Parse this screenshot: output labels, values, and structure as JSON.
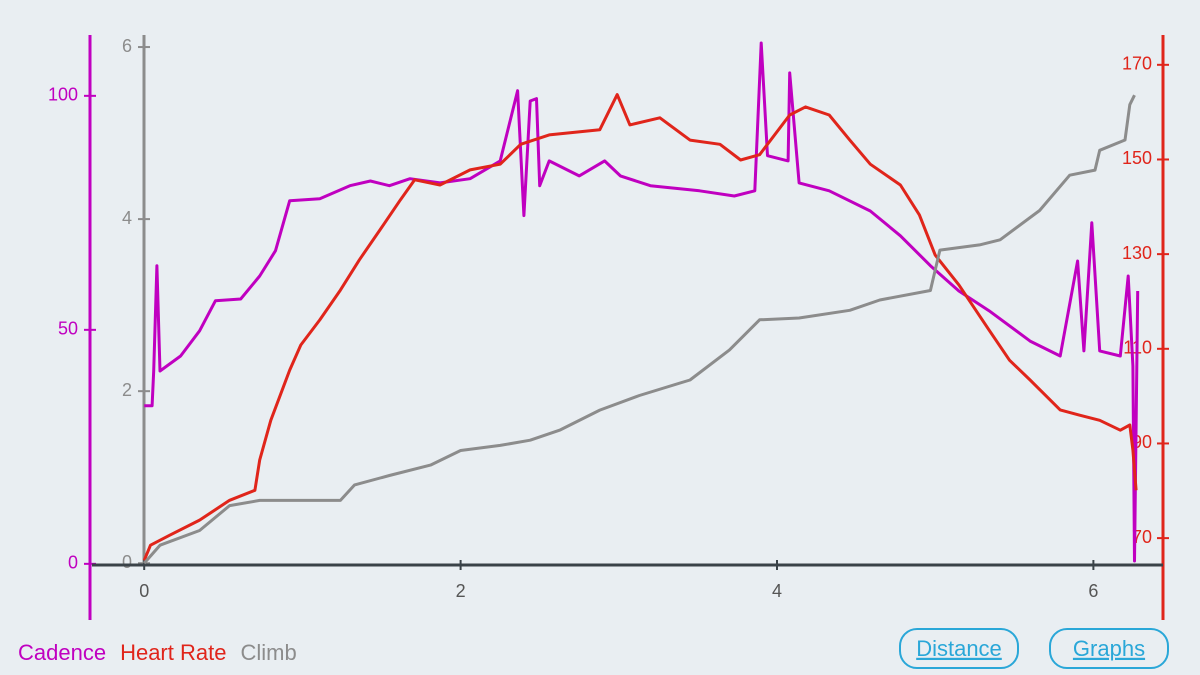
{
  "chart_data": {
    "type": "line",
    "xlim": [
      -0.33,
      6.44
    ],
    "xticks": [
      0,
      2,
      4,
      6
    ],
    "ylim": [
      -12,
      113
    ],
    "yticks": [
      0,
      50,
      100
    ],
    "y2lim": [
      52.7,
      176.3
    ],
    "y2ticks": [
      70,
      90,
      110,
      130,
      150,
      170
    ],
    "y3lim": [
      -0.66,
      6.14
    ],
    "y3ticks": [
      0,
      2,
      4,
      6
    ],
    "legend": "bottom-left",
    "series": [
      {
        "name": "Cadence",
        "color": "#c000c0",
        "axis": "y",
        "x": [
          0,
          0.05,
          0.06,
          0.08,
          0.1,
          0.23,
          0.35,
          0.45,
          0.61,
          0.73,
          0.83,
          0.92,
          1.11,
          1.3,
          1.43,
          1.55,
          1.68,
          1.87,
          2.06,
          2.25,
          2.36,
          2.4,
          2.44,
          2.48,
          2.5,
          2.56,
          2.75,
          2.91,
          3.01,
          3.2,
          3.51,
          3.73,
          3.86,
          3.9,
          3.94,
          4.07,
          4.08,
          4.14,
          4.33,
          4.59,
          4.78,
          4.97,
          5.15,
          5.34,
          5.6,
          5.79,
          5.9,
          5.94,
          5.99,
          6.04,
          6.17,
          6.22,
          6.25,
          6.26,
          6.28
        ],
        "values": [
          33.8,
          33.8,
          41.2,
          63.7,
          41.2,
          44.4,
          49.8,
          56.2,
          56.6,
          61.5,
          66.9,
          77.6,
          78.0,
          80.8,
          81.8,
          80.8,
          82.3,
          81.4,
          82.3,
          86.1,
          101.1,
          74.4,
          98.9,
          99.4,
          80.8,
          86.1,
          82.9,
          86.1,
          82.9,
          80.8,
          79.7,
          78.6,
          79.7,
          111.3,
          87.2,
          86.1,
          104.9,
          81.4,
          79.7,
          75.4,
          70.1,
          63.7,
          58.3,
          54.1,
          47.6,
          44.4,
          64.7,
          45.5,
          72.9,
          45.5,
          44.4,
          61.5,
          42.3,
          0.6,
          58.3
        ]
      },
      {
        "name": "Heart Rate",
        "color": "#e0251b",
        "axis": "y2",
        "x": [
          0,
          0.04,
          0.16,
          0.35,
          0.54,
          0.7,
          0.73,
          0.8,
          0.92,
          0.99,
          1.11,
          1.24,
          1.36,
          1.49,
          1.62,
          1.71,
          1.87,
          2.06,
          2.25,
          2.38,
          2.56,
          2.88,
          2.99,
          3.07,
          3.26,
          3.45,
          3.64,
          3.77,
          3.89,
          4.08,
          4.18,
          4.33,
          4.46,
          4.59,
          4.78,
          4.9,
          5.0,
          5.15,
          5.34,
          5.47,
          5.6,
          5.79,
          5.91,
          6.04,
          6.17,
          6.23,
          6.25,
          6.27
        ],
        "values": [
          65.3,
          68.5,
          70.6,
          73.8,
          78.0,
          80.1,
          86.5,
          94.9,
          105.5,
          110.8,
          116.1,
          122.4,
          128.8,
          135.1,
          141.5,
          145.7,
          144.6,
          147.8,
          149.0,
          153.2,
          155.2,
          156.3,
          163.7,
          157.3,
          158.8,
          154.1,
          153.2,
          149.9,
          151.0,
          159.4,
          161.1,
          159.4,
          154.1,
          149.0,
          144.6,
          138.3,
          129.8,
          123.5,
          114.0,
          107.6,
          103.4,
          97.1,
          96.0,
          94.9,
          92.8,
          93.9,
          88.6,
          80.1
        ]
      },
      {
        "name": "Climb",
        "color": "#8c8c8c",
        "axis": "y3",
        "x": [
          0,
          0.1,
          0.35,
          0.54,
          0.73,
          1.24,
          1.33,
          1.55,
          1.81,
          2.0,
          2.25,
          2.44,
          2.63,
          2.88,
          3.13,
          3.45,
          3.7,
          3.89,
          4.14,
          4.46,
          4.65,
          4.97,
          5.03,
          5.28,
          5.41,
          5.66,
          5.85,
          6.01,
          6.04,
          6.2,
          6.23,
          6.26
        ],
        "values": [
          0,
          0.21,
          0.38,
          0.67,
          0.73,
          0.73,
          0.91,
          1.02,
          1.14,
          1.31,
          1.37,
          1.43,
          1.55,
          1.78,
          1.95,
          2.13,
          2.48,
          2.83,
          2.85,
          2.94,
          3.06,
          3.17,
          3.64,
          3.7,
          3.76,
          4.1,
          4.51,
          4.57,
          4.8,
          4.92,
          5.33,
          5.44
        ]
      }
    ]
  },
  "buttons": [
    "Distance",
    "Graphs"
  ]
}
